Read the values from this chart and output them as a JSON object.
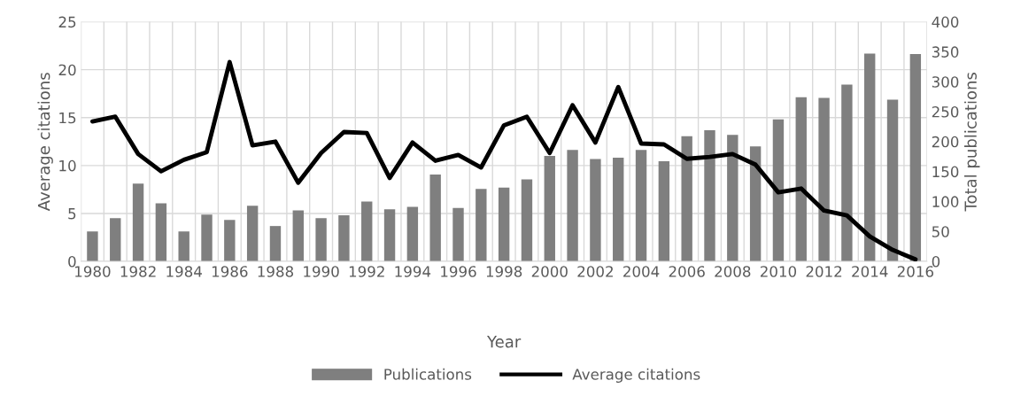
{
  "chart_data": {
    "type": "bar",
    "xlabel": "Year",
    "ylabel": "Average citations",
    "y2label": "Total publications",
    "categories": [
      "1980",
      null,
      "1982",
      null,
      "1984",
      null,
      "1986",
      null,
      "1988",
      null,
      "1990",
      null,
      "1992",
      null,
      "1994",
      null,
      "1996",
      null,
      "1998",
      null,
      "2000",
      null,
      "2002",
      null,
      "2004",
      null,
      "2006",
      null,
      "2008",
      null,
      "2010",
      null,
      "2012",
      null,
      "2014",
      null,
      "2016"
    ],
    "series": [
      {
        "name": "Publications",
        "axis": "y2",
        "color": "#7f7f7f",
        "values": [
          50,
          72,
          130,
          97,
          50,
          78,
          69,
          93,
          59,
          85,
          72,
          77,
          100,
          87,
          91,
          145,
          89,
          121,
          123,
          137,
          176,
          186,
          171,
          173,
          186,
          167,
          209,
          219,
          211,
          192,
          237,
          274,
          273,
          295,
          347,
          270,
          346
        ]
      },
      {
        "name": "Average citations",
        "type": "line",
        "axis": "y",
        "color": "#000000",
        "values": [
          14.6,
          15.1,
          11.2,
          9.4,
          10.6,
          11.4,
          20.8,
          12.1,
          12.5,
          8.2,
          11.3,
          13.5,
          13.4,
          8.7,
          12.4,
          10.5,
          11.1,
          9.8,
          14.2,
          15.1,
          11.3,
          16.3,
          12.4,
          18.2,
          12.3,
          12.2,
          10.7,
          10.9,
          11.2,
          10.1,
          7.2,
          7.6,
          5.3,
          4.8,
          2.6,
          1.2,
          0.2
        ]
      }
    ],
    "ylim": [
      0,
      25
    ],
    "yticks": [
      0,
      5,
      10,
      15,
      20,
      25
    ],
    "y2lim": [
      0,
      400
    ],
    "y2ticks": [
      0,
      50,
      100,
      150,
      200,
      250,
      300,
      350,
      400
    ],
    "grid": true,
    "legend": "bottom",
    "marker": "none",
    "line_style": "solid"
  }
}
